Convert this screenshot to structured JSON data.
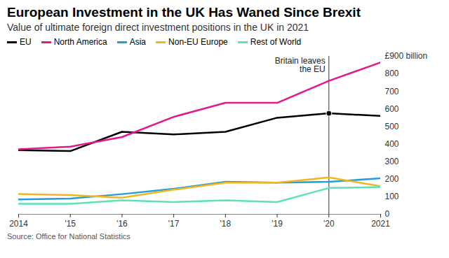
{
  "chart_data": {
    "type": "line",
    "title": "European Investment in the UK Has Waned Since Brexit",
    "subtitle": "Value of ultimate foreign direct investment positions in the UK in 2021",
    "source": "Source: Office for National Statistics",
    "x": [
      2014,
      2015,
      2016,
      2017,
      2018,
      2019,
      2020,
      2021
    ],
    "xlim": [
      2014,
      2021
    ],
    "xticks": [
      {
        "value": 2014,
        "label": "2014"
      },
      {
        "value": 2015,
        "label": "'15"
      },
      {
        "value": 2016,
        "label": "'16"
      },
      {
        "value": 2017,
        "label": "'17"
      },
      {
        "value": 2018,
        "label": "'18"
      },
      {
        "value": 2019,
        "label": "'19"
      },
      {
        "value": 2020,
        "label": "'20"
      },
      {
        "value": 2021,
        "label": "2021"
      }
    ],
    "ylim": [
      0,
      900
    ],
    "yticks": [
      0,
      100,
      200,
      300,
      400,
      500,
      600,
      700,
      800,
      {
        "value": 900,
        "label": "£900 billion"
      }
    ],
    "grid": false,
    "legend": "top-left",
    "series": [
      {
        "name": "EU",
        "color": "#000000",
        "values": [
          365,
          360,
          470,
          455,
          470,
          550,
          575,
          560
        ]
      },
      {
        "name": "North America",
        "color": "#e5188b",
        "values": [
          370,
          385,
          440,
          555,
          635,
          635,
          760,
          865
        ]
      },
      {
        "name": "Asia",
        "color": "#229fd9",
        "values": [
          85,
          90,
          115,
          145,
          185,
          180,
          185,
          205
        ]
      },
      {
        "name": "Non-EU Europe",
        "color": "#f2b51c",
        "values": [
          115,
          110,
          95,
          140,
          180,
          180,
          210,
          160
        ]
      },
      {
        "name": "Rest of World",
        "color": "#5ce3b2",
        "values": [
          60,
          60,
          80,
          70,
          80,
          70,
          150,
          155
        ]
      }
    ],
    "annotations": [
      {
        "x": 2020,
        "text": "Britain leaves the EU",
        "series": "EU"
      }
    ]
  }
}
